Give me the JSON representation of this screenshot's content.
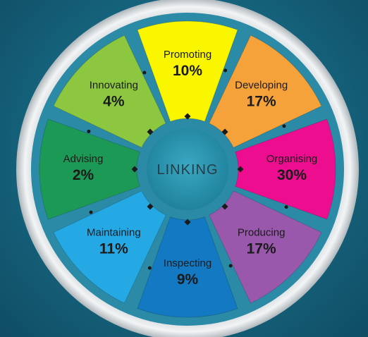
{
  "center_label": "LINKING",
  "segments": [
    {
      "id": "promoting",
      "label": "Promoting",
      "value": "10%",
      "color": "#f9f600"
    },
    {
      "id": "developing",
      "label": "Developing",
      "value": "17%",
      "color": "#f6a23a"
    },
    {
      "id": "organising",
      "label": "Organising",
      "value": "30%",
      "color": "#ec0e8f"
    },
    {
      "id": "producing",
      "label": "Producing",
      "value": "17%",
      "color": "#9a58ac"
    },
    {
      "id": "inspecting",
      "label": "Inspecting",
      "value": "9%",
      "color": "#1279c2"
    },
    {
      "id": "maintaining",
      "label": "Maintaining",
      "value": "11%",
      "color": "#25a9e5"
    },
    {
      "id": "advising",
      "label": "Advising",
      "value": "2%",
      "color": "#1c9a55"
    },
    {
      "id": "innovating",
      "label": "Innovating",
      "value": "4%",
      "color": "#8dc63f"
    }
  ],
  "colors": {
    "ring": "#dfe3e6",
    "ring_inner": "#b9c1c6",
    "hub": "#1f8aa6",
    "channel": "#2b8ba6",
    "connector": "#1a1a1a"
  }
}
